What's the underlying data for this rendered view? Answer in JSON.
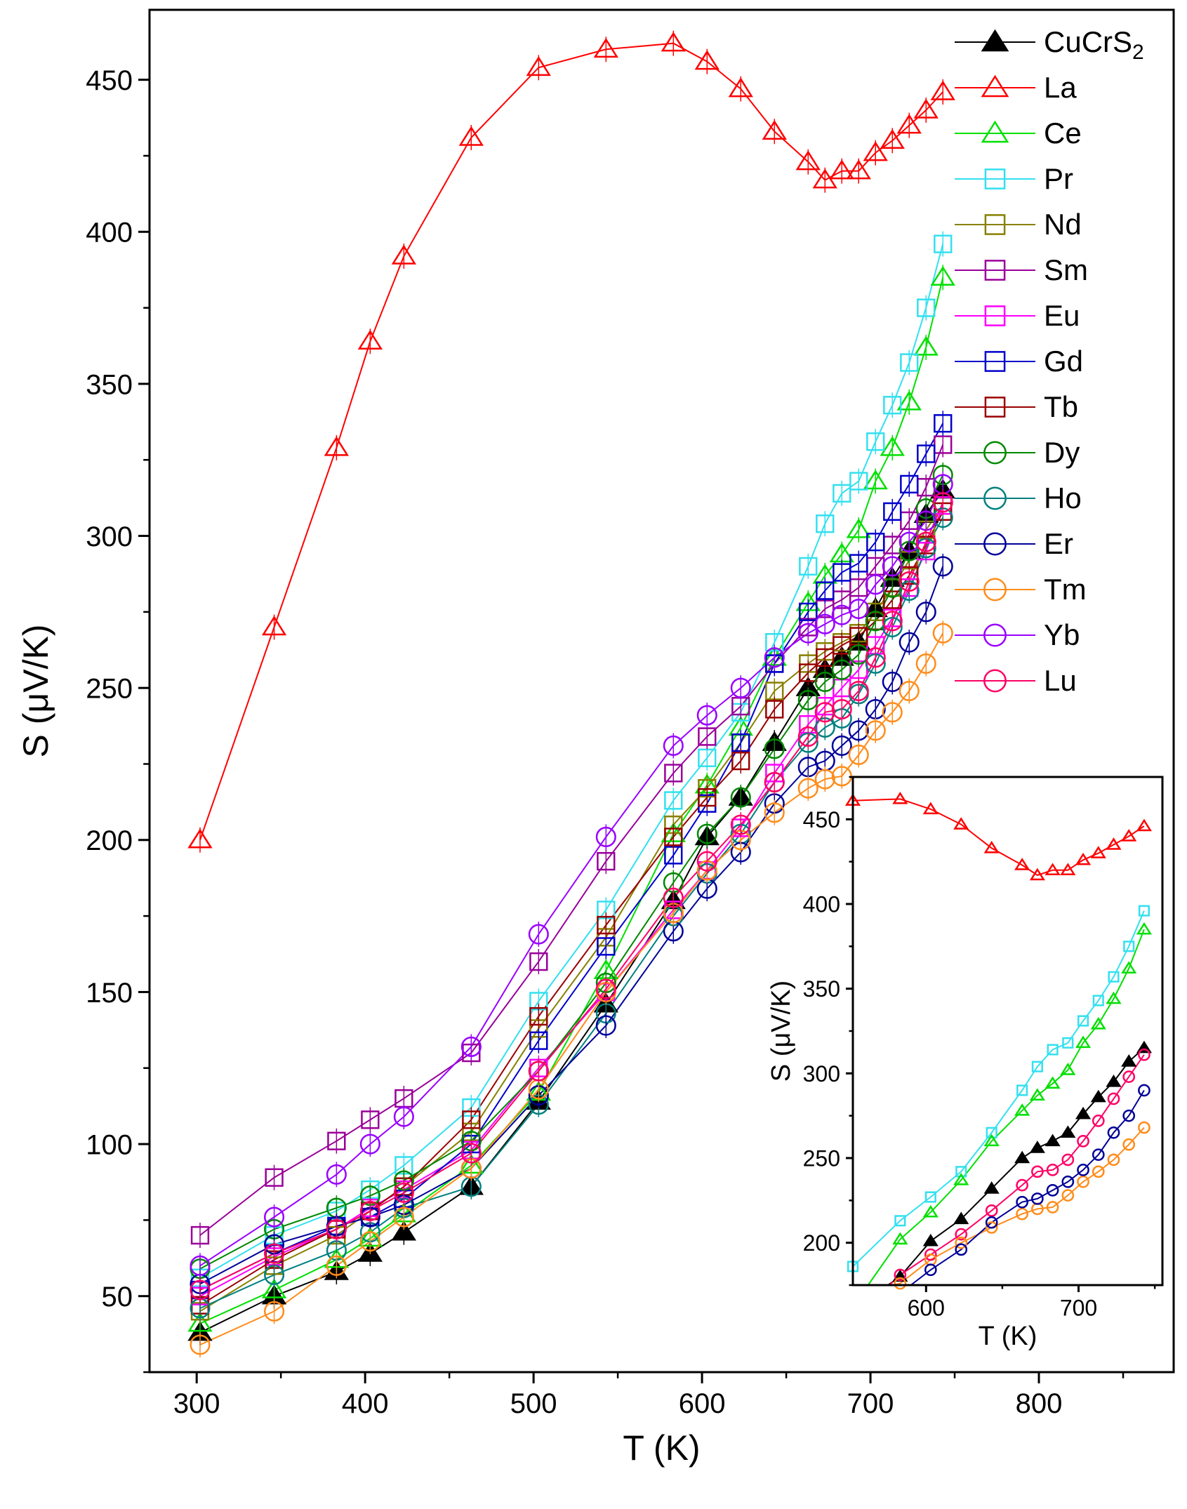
{
  "chart_data": [
    {
      "type": "line",
      "xlabel": "T (K)",
      "ylabel": "S (μV/K)",
      "xlim": [
        272,
        880
      ],
      "ylim": [
        25,
        473
      ],
      "x_ticks": [
        300,
        400,
        500,
        600,
        700,
        800
      ],
      "y_ticks": [
        50,
        100,
        150,
        200,
        250,
        300,
        350,
        400,
        450
      ],
      "legend_position": "top-right",
      "grid": false,
      "series": [
        {
          "name": "CuCrS2",
          "name_main": "CuCrS",
          "name_sub": "2",
          "color": "#000000",
          "marker": "filled-triangle",
          "x": [
            302,
            346,
            383,
            403,
            423,
            463,
            503,
            543,
            583,
            603,
            623,
            643,
            663,
            673,
            683,
            693,
            703,
            713,
            723,
            733,
            743
          ],
          "y": [
            38,
            50,
            58,
            64,
            71,
            86,
            114,
            146,
            180,
            201,
            214,
            232,
            250,
            256,
            260,
            265,
            276,
            286,
            295,
            307,
            315
          ]
        },
        {
          "name": "La",
          "color": "#ff0000",
          "marker": "open-triangle",
          "x": [
            302,
            346,
            383,
            403,
            423,
            463,
            503,
            543,
            583,
            603,
            623,
            643,
            663,
            673,
            683,
            693,
            703,
            713,
            723,
            733,
            743
          ],
          "y": [
            200,
            270,
            329,
            364,
            392,
            431,
            454,
            460,
            462,
            456,
            447,
            433,
            423,
            417,
            420,
            420,
            426,
            430,
            435,
            440,
            446
          ]
        },
        {
          "name": "Ce",
          "color": "#00e000",
          "marker": "open-triangle",
          "x": [
            302,
            346,
            383,
            403,
            423,
            463,
            503,
            543,
            583,
            603,
            623,
            643,
            663,
            673,
            683,
            693,
            703,
            713,
            723,
            733,
            743
          ],
          "y": [
            41,
            52,
            62,
            69,
            77,
            93,
            117,
            157,
            202,
            218,
            237,
            260,
            278,
            287,
            294,
            302,
            318,
            329,
            344,
            362,
            385
          ]
        },
        {
          "name": "Pr",
          "color": "#33e0f0",
          "marker": "open-square",
          "x": [
            302,
            346,
            383,
            403,
            423,
            463,
            503,
            543,
            583,
            603,
            623,
            643,
            663,
            673,
            683,
            693,
            703,
            713,
            723,
            733,
            743
          ],
          "y": [
            56,
            70,
            78,
            85,
            93,
            112,
            147,
            177,
            213,
            227,
            242,
            265,
            290,
            304,
            314,
            318,
            331,
            343,
            357,
            375,
            396
          ]
        },
        {
          "name": "Nd",
          "color": "#888000",
          "marker": "open-square",
          "x": [
            302,
            346,
            383,
            403,
            423,
            463,
            503,
            543,
            583,
            603,
            623,
            643,
            663,
            673,
            683,
            693,
            703,
            713,
            723,
            733,
            743
          ],
          "y": [
            45,
            60,
            70,
            78,
            86,
            104,
            138,
            168,
            205,
            217,
            232,
            249,
            258,
            262,
            265,
            268,
            275,
            283,
            292,
            302,
            310
          ]
        },
        {
          "name": "Sm",
          "color": "#990099",
          "marker": "open-square",
          "x": [
            302,
            346,
            383,
            403,
            423,
            463,
            503,
            543,
            583,
            603,
            623,
            643,
            663,
            673,
            683,
            693,
            703,
            713,
            723,
            733,
            743
          ],
          "y": [
            70,
            89,
            101,
            108,
            115,
            130,
            160,
            193,
            222,
            234,
            244,
            258,
            270,
            276,
            279,
            283,
            290,
            297,
            305,
            316,
            330
          ]
        },
        {
          "name": "Eu",
          "color": "#ff00ff",
          "marker": "open-square",
          "x": [
            302,
            346,
            383,
            403,
            423,
            463,
            503,
            543,
            583,
            603,
            623,
            643,
            663,
            673,
            683,
            693,
            703,
            713,
            723,
            733,
            743
          ],
          "y": [
            50,
            63,
            72,
            79,
            85,
            98,
            125,
            150,
            177,
            190,
            204,
            222,
            238,
            244,
            250,
            256,
            264,
            273,
            283,
            295,
            310
          ]
        },
        {
          "name": "Gd",
          "color": "#0000cc",
          "marker": "open-square",
          "x": [
            302,
            346,
            383,
            403,
            423,
            463,
            503,
            543,
            583,
            603,
            623,
            643,
            663,
            673,
            683,
            693,
            703,
            713,
            723,
            733,
            743
          ],
          "y": [
            52,
            64,
            73,
            76,
            82,
            100,
            134,
            165,
            195,
            212,
            232,
            258,
            275,
            282,
            288,
            291,
            298,
            308,
            317,
            327,
            337
          ]
        },
        {
          "name": "Tb",
          "color": "#990000",
          "marker": "open-square",
          "x": [
            302,
            346,
            383,
            403,
            423,
            463,
            503,
            543,
            583,
            603,
            623,
            643,
            663,
            673,
            683,
            693,
            703,
            713,
            723,
            733,
            743
          ],
          "y": [
            47,
            62,
            72,
            78,
            86,
            108,
            142,
            172,
            201,
            214,
            226,
            243,
            255,
            260,
            264,
            267,
            272,
            279,
            287,
            297,
            308
          ]
        },
        {
          "name": "Dy",
          "color": "#008800",
          "marker": "open-circle",
          "x": [
            302,
            346,
            383,
            403,
            423,
            463,
            503,
            543,
            583,
            603,
            623,
            643,
            663,
            673,
            683,
            693,
            703,
            713,
            723,
            733,
            743
          ],
          "y": [
            59,
            72,
            79,
            83,
            88,
            101,
            124,
            153,
            186,
            202,
            214,
            230,
            246,
            252,
            256,
            261,
            272,
            283,
            295,
            309,
            320
          ]
        },
        {
          "name": "Ho",
          "color": "#008080",
          "marker": "open-circle",
          "x": [
            302,
            346,
            383,
            403,
            423,
            463,
            503,
            543,
            583,
            603,
            623,
            643,
            663,
            673,
            683,
            693,
            703,
            713,
            723,
            733,
            743
          ],
          "y": [
            46,
            57,
            65,
            71,
            79,
            86,
            113,
            143,
            175,
            189,
            202,
            219,
            232,
            237,
            240,
            248,
            258,
            270,
            282,
            296,
            306
          ]
        },
        {
          "name": "Er",
          "color": "#000099",
          "marker": "open-circle",
          "x": [
            302,
            346,
            383,
            403,
            423,
            463,
            503,
            543,
            583,
            603,
            623,
            643,
            663,
            673,
            683,
            693,
            703,
            713,
            723,
            733,
            743
          ],
          "y": [
            54,
            67,
            73,
            76,
            80,
            92,
            116,
            139,
            170,
            184,
            196,
            212,
            224,
            226,
            231,
            236,
            243,
            252,
            265,
            275,
            290
          ]
        },
        {
          "name": "Tm",
          "color": "#ff8c1a",
          "marker": "open-circle",
          "x": [
            302,
            346,
            383,
            403,
            423,
            463,
            503,
            543,
            583,
            603,
            623,
            643,
            663,
            673,
            683,
            693,
            703,
            713,
            723,
            733,
            743
          ],
          "y": [
            34,
            45,
            60,
            68,
            76,
            92,
            118,
            150,
            176,
            190,
            200,
            209,
            217,
            220,
            221,
            228,
            236,
            242,
            249,
            258,
            268
          ]
        },
        {
          "name": "Yb",
          "color": "#9900ff",
          "marker": "open-circle",
          "x": [
            302,
            346,
            383,
            403,
            423,
            463,
            503,
            543,
            583,
            603,
            623,
            643,
            663,
            673,
            683,
            693,
            703,
            713,
            723,
            733,
            743
          ],
          "y": [
            60,
            76,
            90,
            100,
            109,
            132,
            169,
            201,
            231,
            241,
            250,
            260,
            268,
            271,
            274,
            276,
            284,
            290,
            298,
            305,
            317
          ]
        },
        {
          "name": "Lu",
          "color": "#ff0066",
          "marker": "open-circle",
          "x": [
            302,
            346,
            383,
            403,
            423,
            463,
            503,
            543,
            583,
            603,
            623,
            643,
            663,
            673,
            683,
            693,
            703,
            713,
            723,
            733,
            743
          ],
          "y": [
            52,
            64,
            72,
            78,
            84,
            97,
            124,
            151,
            181,
            193,
            205,
            219,
            234,
            242,
            243,
            249,
            260,
            272,
            285,
            298,
            311
          ]
        }
      ]
    },
    {
      "type": "line",
      "inset": true,
      "xlabel": "T (K)",
      "ylabel": "S (μV/K)",
      "xlim": [
        552,
        755
      ],
      "ylim": [
        175,
        475
      ],
      "x_ticks": [
        600,
        700
      ],
      "y_ticks": [
        200,
        250,
        300,
        350,
        400,
        450
      ],
      "grid": false,
      "series": [
        {
          "name": "La",
          "color": "#ff0000",
          "marker": "open-triangle",
          "x": [
            552,
            583,
            603,
            623,
            643,
            663,
            673,
            683,
            693,
            703,
            713,
            723,
            733,
            743
          ],
          "y": [
            461,
            462,
            456,
            447,
            433,
            423,
            417,
            420,
            420,
            426,
            430,
            435,
            440,
            446
          ]
        },
        {
          "name": "Pr",
          "color": "#33e0f0",
          "marker": "open-square",
          "x": [
            552,
            583,
            603,
            623,
            643,
            663,
            673,
            683,
            693,
            703,
            713,
            723,
            733,
            743
          ],
          "y": [
            186,
            213,
            227,
            242,
            265,
            290,
            304,
            314,
            318,
            331,
            343,
            357,
            375,
            396
          ]
        },
        {
          "name": "Ce",
          "color": "#00e000",
          "marker": "open-triangle",
          "x": [
            562,
            583,
            603,
            623,
            643,
            663,
            673,
            683,
            693,
            703,
            713,
            723,
            733,
            743
          ],
          "y": [
            175,
            202,
            218,
            237,
            260,
            278,
            287,
            294,
            302,
            318,
            329,
            344,
            362,
            385
          ]
        },
        {
          "name": "CuCrS2",
          "color": "#000000",
          "marker": "filled-triangle",
          "x": [
            575,
            583,
            603,
            623,
            643,
            663,
            673,
            683,
            693,
            703,
            713,
            723,
            733,
            743
          ],
          "y": [
            175,
            180,
            201,
            214,
            232,
            250,
            256,
            260,
            265,
            276,
            286,
            295,
            307,
            315
          ]
        },
        {
          "name": "Lu",
          "color": "#ff0066",
          "marker": "open-circle",
          "x": [
            576,
            583,
            603,
            623,
            643,
            663,
            673,
            683,
            693,
            703,
            713,
            723,
            733,
            743
          ],
          "y": [
            175,
            181,
            193,
            205,
            219,
            234,
            242,
            243,
            249,
            260,
            272,
            285,
            298,
            311
          ]
        },
        {
          "name": "Tm",
          "color": "#ff8c1a",
          "marker": "open-circle",
          "x": [
            578,
            583,
            603,
            623,
            643,
            663,
            673,
            683,
            693,
            703,
            713,
            723,
            733,
            743
          ],
          "y": [
            175,
            176,
            190,
            200,
            209,
            217,
            220,
            221,
            228,
            236,
            242,
            249,
            258,
            268
          ]
        },
        {
          "name": "Er",
          "color": "#000099",
          "marker": "open-circle",
          "x": [
            590,
            603,
            623,
            643,
            663,
            673,
            683,
            693,
            703,
            713,
            723,
            733,
            743
          ],
          "y": [
            175,
            184,
            196,
            212,
            224,
            226,
            231,
            236,
            243,
            252,
            265,
            275,
            290
          ]
        }
      ]
    }
  ]
}
